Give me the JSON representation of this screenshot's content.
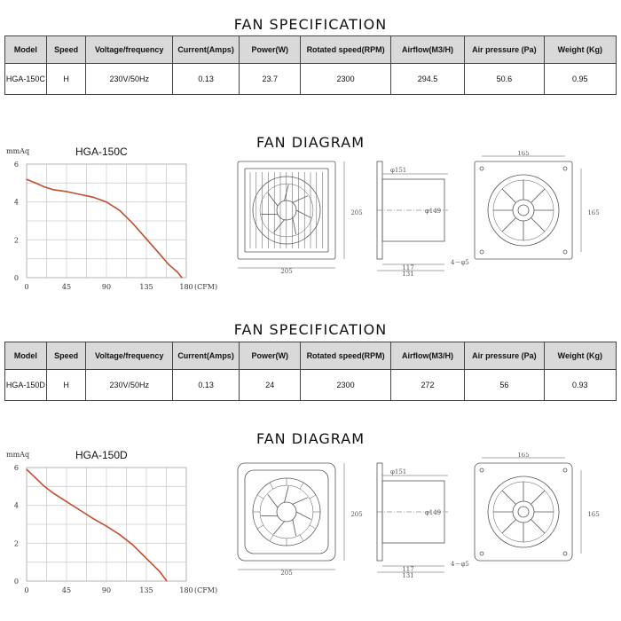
{
  "spec_title": "FAN SPECIFICATION",
  "diagram_title": "FAN DIAGRAM",
  "headers": [
    "Model",
    "Speed",
    "Voltage/frequency",
    "Current(Amps)",
    "Power(W)",
    "Rotated speed(RPM)",
    "Airflow(M3/H)",
    "Air pressure (Pa)",
    "Weight (Kg)"
  ],
  "rows": [
    [
      "HGA-150C",
      "H",
      "230V/50Hz",
      "0.13",
      "23.7",
      "2300",
      "294.5",
      "50.6",
      "0.95"
    ],
    [
      "HGA-150D",
      "H",
      "230V/50Hz",
      "0.13",
      "24",
      "2300",
      "272",
      "56",
      "0.93"
    ]
  ],
  "drawing_dims": {
    "width_front": "205",
    "height_front": "205",
    "diameter": "φ151",
    "duct": "φ149",
    "depth_a": "117",
    "depth_b": "131",
    "mount_span": "165",
    "mount_height": "165",
    "holes": "4－φ5"
  },
  "chart_data": [
    {
      "type": "line",
      "title": "HGA-150C",
      "ylabel": "mmAq",
      "xlabel": "(CFM)",
      "xlim": [
        0,
        180
      ],
      "ylim": [
        0,
        6
      ],
      "xticks": [
        0,
        45,
        90,
        135,
        180
      ],
      "yticks": [
        0,
        2,
        4,
        6
      ],
      "grid": true,
      "line_color": "#c0502f",
      "x": [
        0,
        10,
        20,
        30,
        45,
        60,
        75,
        90,
        105,
        120,
        135,
        150,
        160,
        170,
        175
      ],
      "y": [
        5.2,
        5.0,
        4.8,
        4.65,
        4.55,
        4.4,
        4.25,
        4.0,
        3.55,
        2.85,
        2.05,
        1.25,
        0.7,
        0.3,
        0.0
      ]
    },
    {
      "type": "line",
      "title": "HGA-150D",
      "ylabel": "mmAq",
      "xlabel": "(CFM)",
      "xlim": [
        0,
        180
      ],
      "ylim": [
        0,
        6
      ],
      "xticks": [
        0,
        45,
        90,
        135,
        180
      ],
      "yticks": [
        0,
        2,
        4,
        6
      ],
      "grid": true,
      "line_color": "#c0502f",
      "x": [
        0,
        10,
        20,
        30,
        45,
        60,
        75,
        90,
        105,
        120,
        135,
        150,
        158
      ],
      "y": [
        5.9,
        5.45,
        5.0,
        4.65,
        4.2,
        3.75,
        3.3,
        2.9,
        2.45,
        1.9,
        1.2,
        0.5,
        0.0
      ]
    }
  ]
}
